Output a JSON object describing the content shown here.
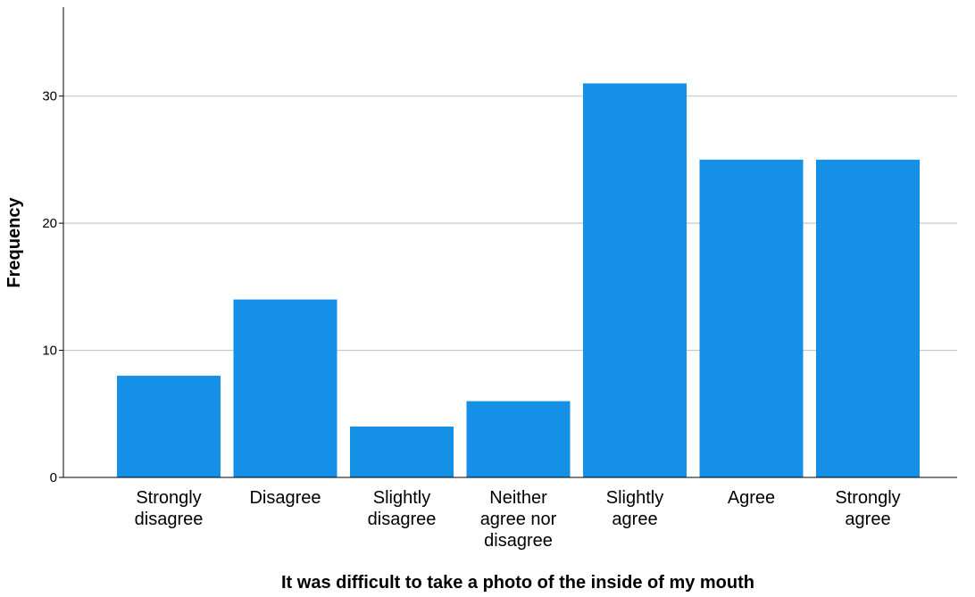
{
  "chart_data": {
    "type": "bar",
    "categories": [
      [
        "Strongly",
        "disagree"
      ],
      [
        "Disagree"
      ],
      [
        "Slightly",
        "disagree"
      ],
      [
        "Neither",
        "agree nor",
        "disagree"
      ],
      [
        "Slightly",
        "agree"
      ],
      [
        "Agree"
      ],
      [
        "Strongly",
        "agree"
      ]
    ],
    "values": [
      8,
      14,
      4,
      6,
      31,
      25,
      25
    ],
    "xlabel": "It was difficult to take a photo of the inside of my mouth",
    "ylabel": "Frequency",
    "ylim": [
      0,
      37
    ],
    "yticks": [
      0,
      10,
      20,
      30
    ],
    "grid": true,
    "bar_color": "#1490e6",
    "grid_color": "#c8c8c8",
    "axis_color": "#000000"
  }
}
